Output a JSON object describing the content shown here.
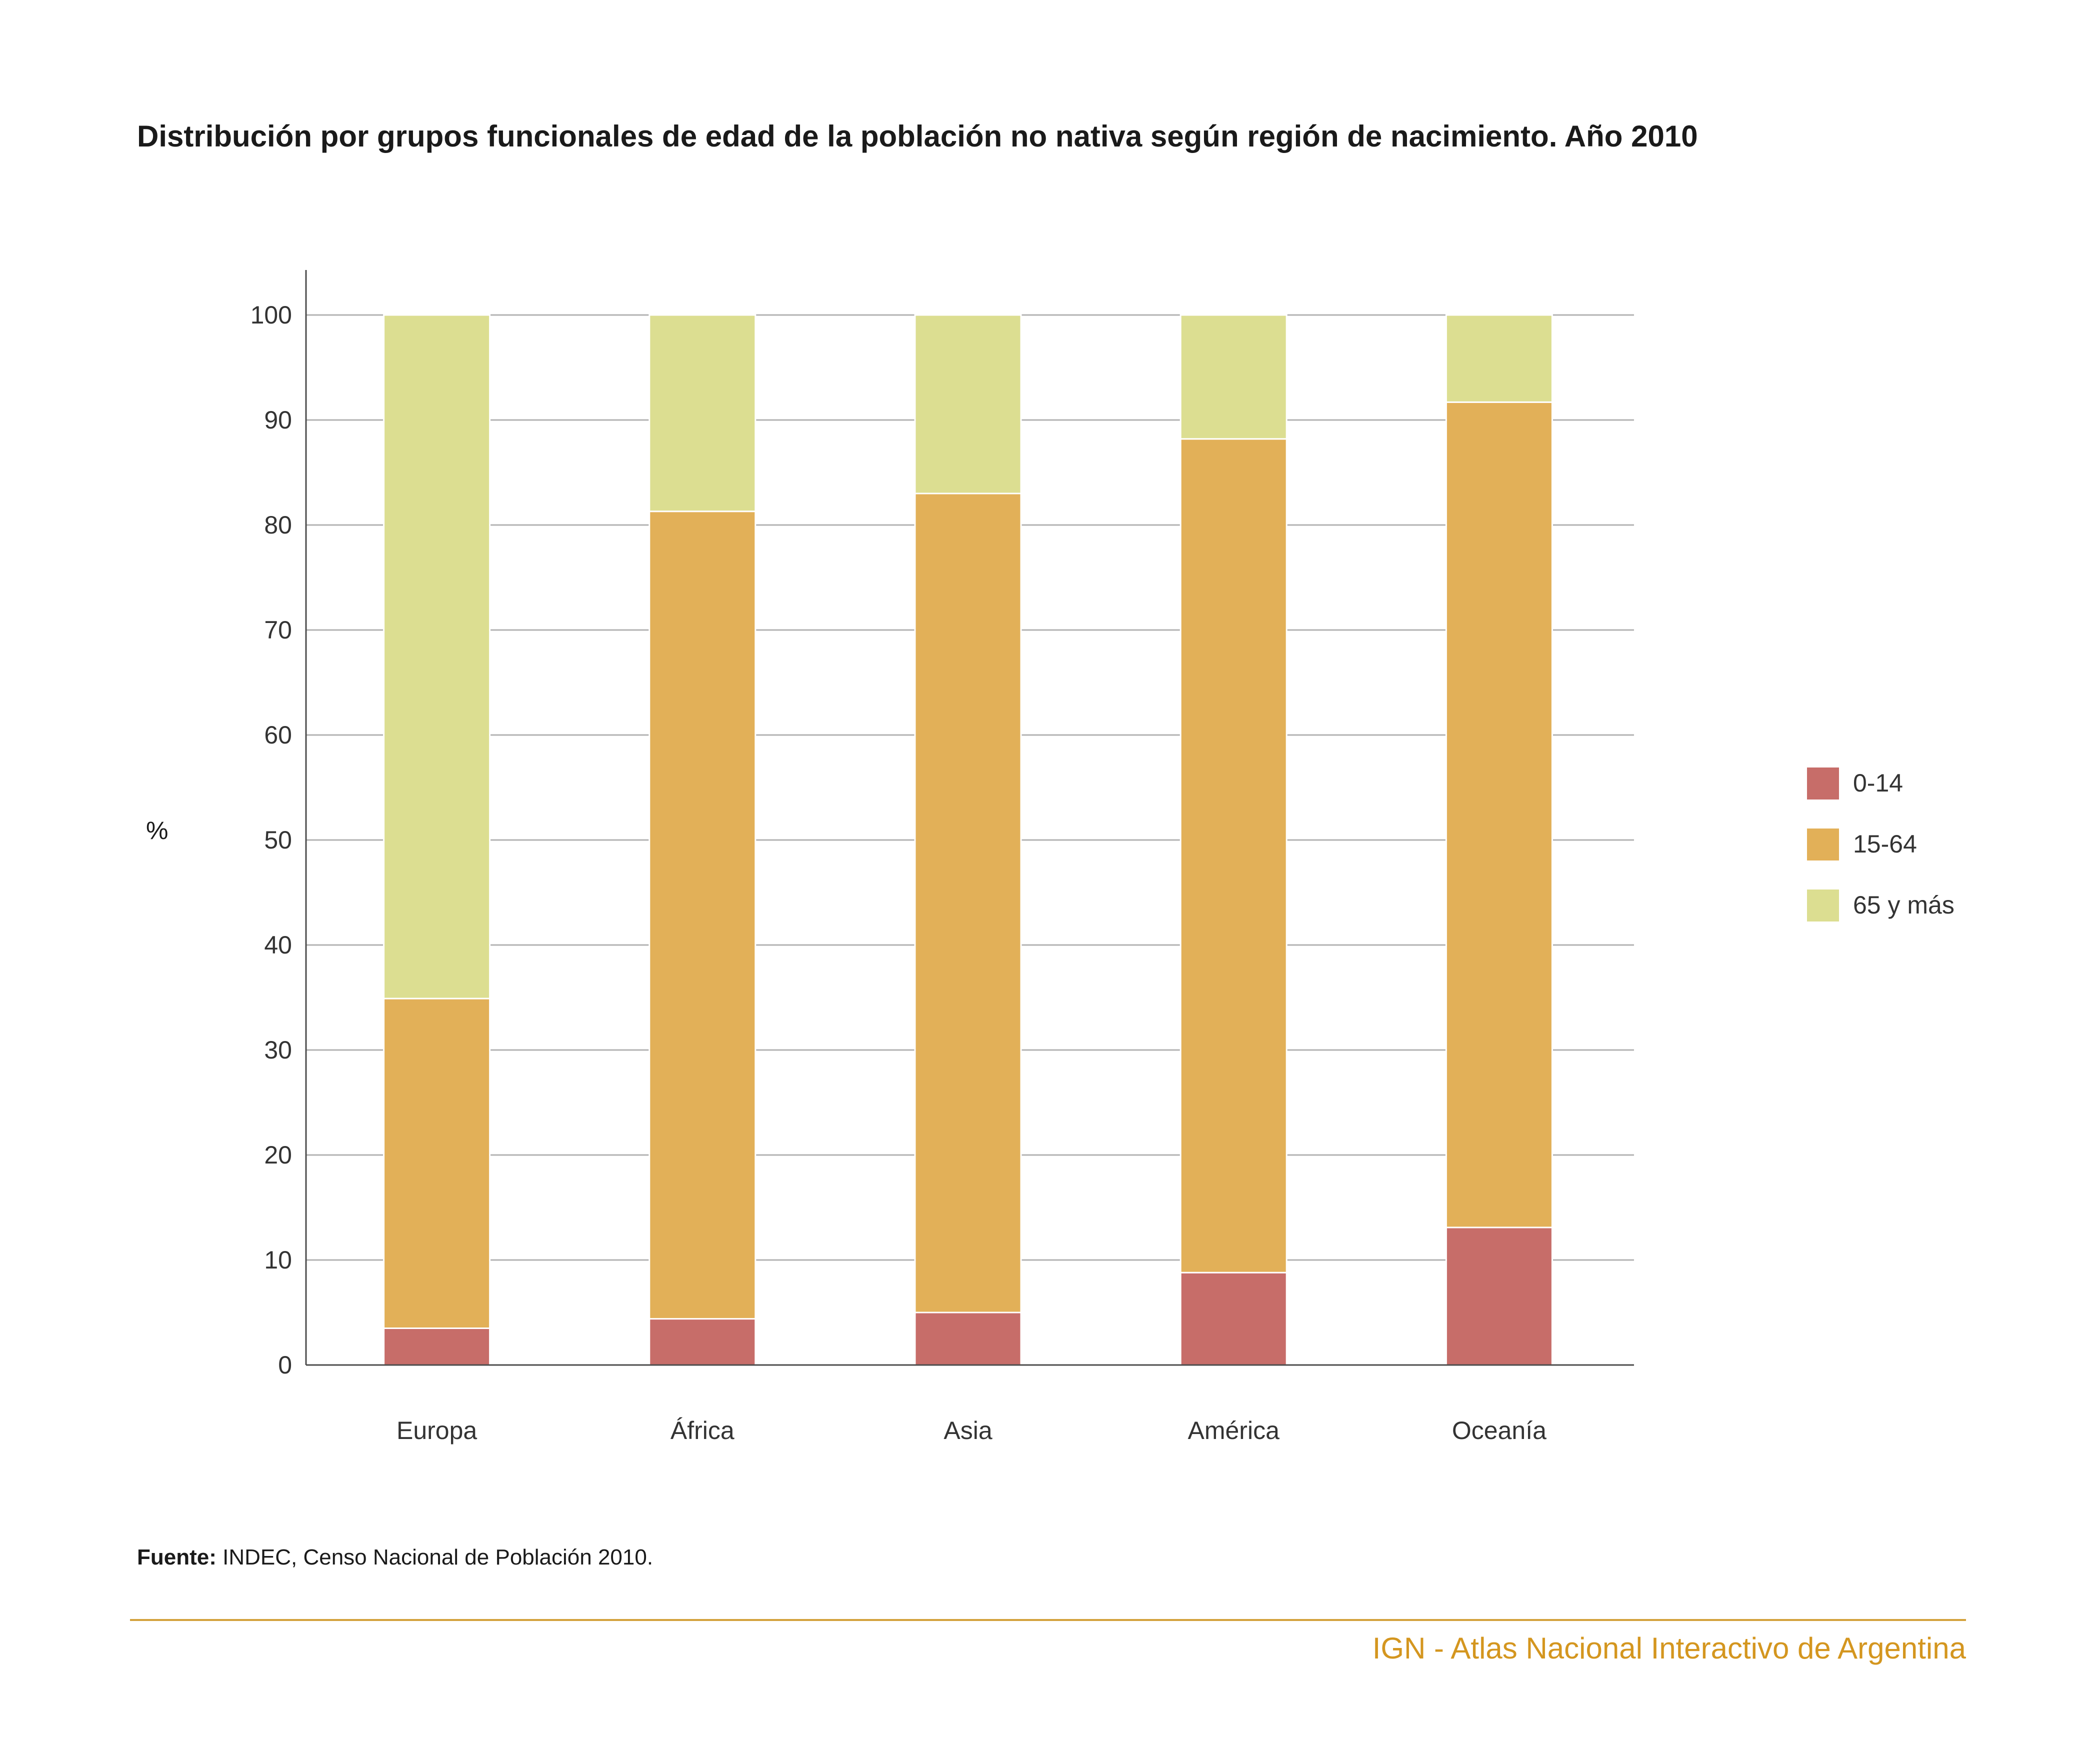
{
  "chart_data": {
    "type": "bar",
    "stacked": true,
    "title": "Distribución por grupos funcionales de edad de la población no nativa según región de nacimiento. Año 2010",
    "xlabel": "",
    "ylabel": "%",
    "ylim": [
      0,
      100
    ],
    "yticks": [
      0,
      10,
      20,
      30,
      40,
      50,
      60,
      70,
      80,
      90,
      100
    ],
    "grid": true,
    "legend_position": "right",
    "categories": [
      "Europa",
      "África",
      "Asia",
      "América",
      "Oceanía"
    ],
    "series": [
      {
        "name": "0-14",
        "color": "#c76d69",
        "values": [
          3.5,
          4.4,
          5.0,
          8.8,
          13.1
        ]
      },
      {
        "name": "15-64",
        "color": "#e2b058",
        "values": [
          31.4,
          76.9,
          78.0,
          79.4,
          78.6
        ]
      },
      {
        "name": "65 y más",
        "color": "#dcde91",
        "values": [
          65.1,
          18.7,
          17.0,
          11.8,
          8.3
        ]
      }
    ]
  },
  "source": {
    "label": "Fuente:",
    "text": " INDEC, Censo Nacional de Población 2010."
  },
  "footer": {
    "brand": "IGN - Atlas Nacional Interactivo de Argentina"
  }
}
